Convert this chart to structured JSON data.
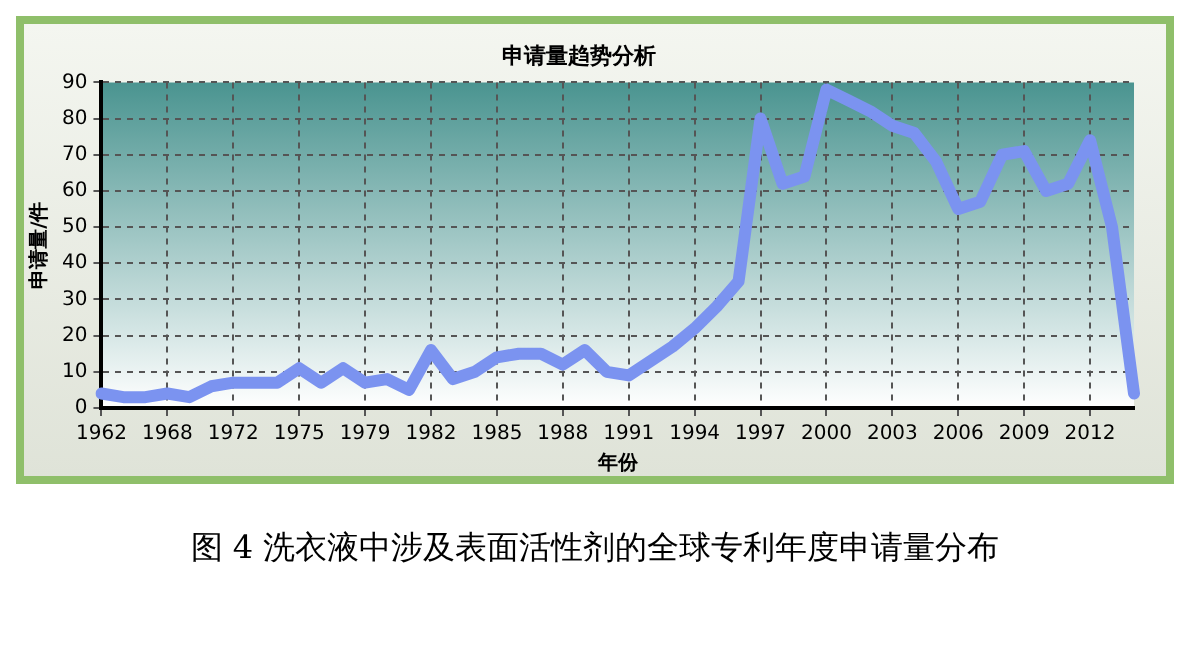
{
  "chart_data": {
    "type": "line",
    "title": "申请量趋势分析",
    "xlabel": "年份",
    "ylabel": "申请量/件",
    "categories": [
      "1962",
      null,
      null,
      "1968",
      null,
      null,
      "1972",
      null,
      null,
      "1975",
      null,
      null,
      "1979",
      null,
      null,
      "1982",
      null,
      null,
      "1985",
      null,
      null,
      "1988",
      null,
      null,
      "1991",
      null,
      null,
      "1994",
      null,
      null,
      "1997",
      null,
      null,
      "2000",
      null,
      null,
      "2003",
      null,
      null,
      "2006",
      null,
      null,
      "2009",
      null,
      null,
      "2012",
      null,
      null
    ],
    "series": [
      {
        "color": "#7b93f0",
        "values": [
          4,
          3,
          3,
          4,
          3,
          6,
          7,
          7,
          7,
          11,
          7,
          11,
          7,
          8,
          5,
          16,
          8,
          10,
          14,
          15,
          15,
          12,
          16,
          10,
          9,
          13,
          17,
          22,
          28,
          35,
          80,
          62,
          64,
          88,
          85,
          82,
          78,
          76,
          68,
          55,
          57,
          70,
          71,
          60,
          62,
          74,
          50,
          4
        ]
      }
    ],
    "ylim": [
      0,
      90
    ],
    "yticks": [
      0,
      10,
      20,
      30,
      40,
      50,
      60,
      70,
      80,
      90
    ],
    "grid": true,
    "marker": "none",
    "legend": false,
    "annotations": [
      "图 4 洗衣液中涉及表面活性剂的全球专利年度申请量分布"
    ]
  }
}
